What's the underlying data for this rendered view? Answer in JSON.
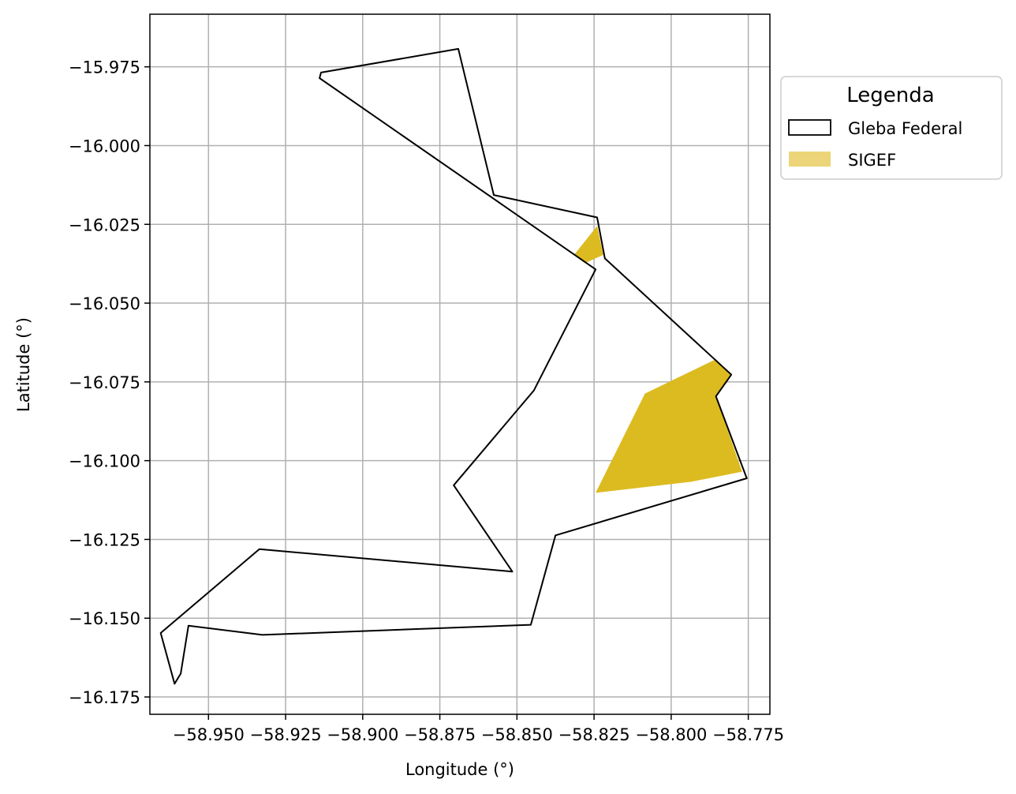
{
  "chart_data": {
    "type": "map",
    "xlabel": "Longitude (°)",
    "ylabel": "Latitude (°)",
    "xlim": [
      -58.969,
      -58.768
    ],
    "ylim": [
      -16.1805,
      -15.9583
    ],
    "grid": true,
    "x_ticks": [
      -58.95,
      -58.925,
      -58.9,
      -58.875,
      -58.85,
      -58.825,
      -58.8,
      -58.775
    ],
    "x_tick_labels": [
      "−58.950",
      "−58.925",
      "−58.900",
      "−58.875",
      "−58.850",
      "−58.825",
      "−58.800",
      "−58.775"
    ],
    "y_ticks": [
      -15.975,
      -16.0,
      -16.025,
      -16.05,
      -16.075,
      -16.1,
      -16.125,
      -16.15,
      -16.175
    ],
    "y_tick_labels": [
      "−15.975",
      "−16.000",
      "−16.025",
      "−16.050",
      "−16.075",
      "−16.100",
      "−16.125",
      "−16.150",
      "−16.175"
    ],
    "legend": {
      "title": "Legenda",
      "placement": "outside-right-top",
      "entries": [
        {
          "label": "Gleba Federal",
          "style": "outline"
        },
        {
          "label": "SIGEF",
          "style": "fill"
        }
      ]
    },
    "layers": [
      {
        "name": "Gleba Federal",
        "style": "outline",
        "stroke": "#000000",
        "fill": "none",
        "polygons": [
          [
            [
              -58.869,
              -15.9693
            ],
            [
              -58.9135,
              -15.9768
            ],
            [
              -58.914,
              -15.9786
            ],
            [
              -58.8245,
              -16.0393
            ],
            [
              -58.8445,
              -16.0777
            ],
            [
              -58.8705,
              -16.1078
            ],
            [
              -58.8515,
              -16.1352
            ],
            [
              -58.9335,
              -16.1281
            ],
            [
              -58.9655,
              -16.1547
            ],
            [
              -58.961,
              -16.1708
            ],
            [
              -58.959,
              -16.1676
            ],
            [
              -58.9565,
              -16.1524
            ],
            [
              -58.9325,
              -16.1553
            ],
            [
              -58.8455,
              -16.1521
            ],
            [
              -58.8375,
              -16.1237
            ],
            [
              -58.7755,
              -16.1056
            ],
            [
              -58.7855,
              -16.0796
            ],
            [
              -58.7805,
              -16.0727
            ],
            [
              -58.8215,
              -16.0358
            ],
            [
              -58.824,
              -16.0228
            ],
            [
              -58.8575,
              -16.0157
            ]
          ]
        ]
      },
      {
        "name": "SIGEF",
        "style": "fill",
        "fill": "#dcbb21",
        "legend_fill": "#ecd578",
        "polygons": [
          [
            [
              -58.824,
              -16.0255
            ],
            [
              -58.822,
              -16.0347
            ],
            [
              -58.828,
              -16.0373
            ],
            [
              -58.8315,
              -16.0347
            ]
          ],
          [
            [
              -58.7855,
              -16.0678
            ],
            [
              -58.8085,
              -16.0787
            ],
            [
              -58.8245,
              -16.1102
            ],
            [
              -58.7935,
              -16.1067
            ],
            [
              -58.777,
              -16.1035
            ],
            [
              -58.7855,
              -16.0796
            ],
            [
              -58.7805,
              -16.0727
            ]
          ]
        ]
      }
    ]
  }
}
